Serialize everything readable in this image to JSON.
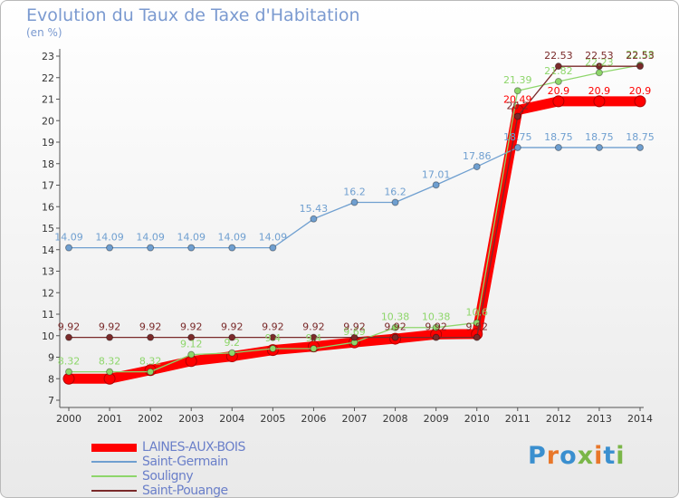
{
  "title": "Evolution du Taux de Taxe d'Habitation",
  "unit": "(en %)",
  "logo": {
    "text": "Proxiti",
    "colors": [
      "#3a8fcf",
      "#e8772a",
      "#3a8fcf",
      "#7ab648",
      "#e8772a",
      "#3a8fcf",
      "#7ab648"
    ]
  },
  "chart_data": {
    "type": "line",
    "title": "Evolution du Taux de Taxe d'Habitation",
    "ylabel": "(en %)",
    "xlabel": "",
    "x": [
      "2000",
      "2001",
      "2002",
      "2003",
      "2004",
      "2005",
      "2006",
      "2007",
      "2008",
      "2009",
      "2010",
      "2011",
      "2012",
      "2013",
      "2014"
    ],
    "ylim": [
      7,
      23
    ],
    "yticks": [
      7,
      8,
      9,
      10,
      11,
      12,
      13,
      14,
      15,
      16,
      17,
      18,
      19,
      20,
      21,
      22,
      23
    ],
    "grid": false,
    "legend_position": "bottom-left",
    "series": [
      {
        "name": "LAINES-AUX-BOIS",
        "color": "#ff0000",
        "values": [
          8.0,
          8.0,
          8.4,
          8.82,
          9.04,
          9.33,
          9.5,
          9.69,
          9.86,
          10.06,
          10.08,
          20.49,
          20.9,
          20.9,
          20.9
        ],
        "labels": [
          "",
          "",
          "",
          "",
          "",
          "",
          "",
          "",
          "",
          "",
          "",
          "20.49",
          "20.9",
          "20.9",
          "20.9"
        ]
      },
      {
        "name": "Saint-Germain",
        "color": "#6f9fd0",
        "values": [
          14.09,
          14.09,
          14.09,
          14.09,
          14.09,
          14.09,
          15.43,
          16.2,
          16.2,
          17.01,
          17.86,
          18.75,
          18.75,
          18.75,
          18.75
        ],
        "labels": [
          "14.09",
          "14.09",
          "14.09",
          "14.09",
          "14.09",
          "14.09",
          "15.43",
          "16.2",
          "16.2",
          "17.01",
          "17.86",
          "18.75",
          "18.75",
          "18.75",
          "18.75"
        ]
      },
      {
        "name": "Souligny",
        "color": "#8ed66b",
        "values": [
          8.32,
          8.32,
          8.32,
          9.12,
          9.2,
          9.4,
          9.4,
          9.69,
          10.38,
          10.38,
          10.6,
          21.39,
          21.82,
          22.23,
          22.58
        ],
        "labels": [
          "8.32",
          "8.32",
          "8.32",
          "9.12",
          "9.2",
          "9.4",
          "9.4",
          "9.69",
          "10.38",
          "10.38",
          "10.6",
          "21.39",
          "21.82",
          "22.23",
          "22.58"
        ]
      },
      {
        "name": "Saint-Pouange",
        "color": "#7a2a2a",
        "values": [
          9.92,
          9.92,
          9.92,
          9.92,
          9.92,
          9.92,
          9.92,
          9.92,
          9.92,
          9.92,
          9.92,
          20.2,
          22.53,
          22.53,
          22.53
        ],
        "labels": [
          "9.92",
          "9.92",
          "9.92",
          "9.92",
          "9.92",
          "9.92",
          "9.92",
          "9.92",
          "9.92",
          "9.92",
          "9.92",
          "20.2",
          "22.53",
          "22.53",
          "22.53"
        ]
      }
    ]
  }
}
